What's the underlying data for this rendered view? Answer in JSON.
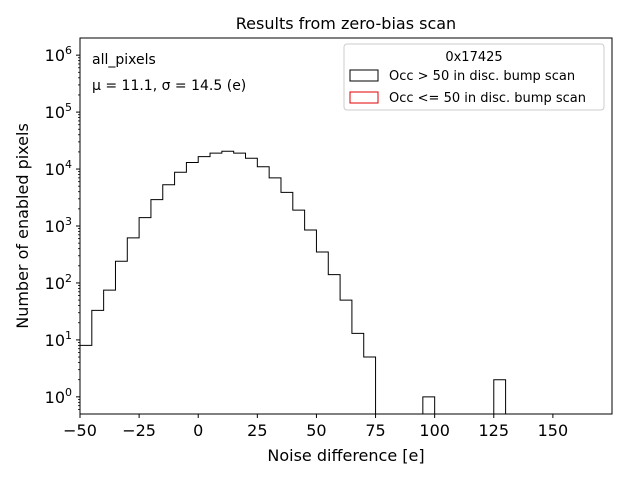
{
  "chart_data": {
    "type": "histogram",
    "title": "Results from zero-bias scan",
    "xlabel": "Noise difference [e]",
    "ylabel": "Number of enabled pixels",
    "y_scale": "log",
    "xlim": [
      -50,
      175
    ],
    "ylim": [
      0.5,
      2000000
    ],
    "x_ticks": [
      -50,
      -25,
      0,
      25,
      50,
      75,
      100,
      125,
      150
    ],
    "x_tick_labels": [
      "−50",
      "−25",
      "0",
      "25",
      "50",
      "75",
      "100",
      "125",
      "150"
    ],
    "y_ticks": [
      1,
      10,
      100,
      1000,
      10000,
      100000,
      1000000
    ],
    "bin_width": 5,
    "annotation_group": "all_pixels",
    "annotation_stats": "μ = 11.1, σ = 14.5 (e)",
    "legend": {
      "title": "0x17425",
      "placement": "top-right",
      "entries": [
        {
          "label": "Occ > 50 in disc. bump scan",
          "color": "#000000"
        },
        {
          "label": "Occ <= 50 in disc. bump scan",
          "color": "#e00000"
        }
      ]
    },
    "series": [
      {
        "bins": [
          {
            "x": -50,
            "value": 8
          },
          {
            "x": -45,
            "value": 33
          },
          {
            "x": -40,
            "value": 75
          },
          {
            "x": -35,
            "value": 240
          },
          {
            "x": -30,
            "value": 620
          },
          {
            "x": -25,
            "value": 1400
          },
          {
            "x": -20,
            "value": 2900
          },
          {
            "x": -15,
            "value": 5300
          },
          {
            "x": -10,
            "value": 8800
          },
          {
            "x": -5,
            "value": 13000
          },
          {
            "x": 0,
            "value": 16500
          },
          {
            "x": 5,
            "value": 19000
          },
          {
            "x": 10,
            "value": 20500
          },
          {
            "x": 15,
            "value": 19000
          },
          {
            "x": 20,
            "value": 15500
          },
          {
            "x": 25,
            "value": 11000
          },
          {
            "x": 30,
            "value": 7000
          },
          {
            "x": 35,
            "value": 3900
          },
          {
            "x": 40,
            "value": 1900
          },
          {
            "x": 45,
            "value": 850
          },
          {
            "x": 50,
            "value": 350
          },
          {
            "x": 55,
            "value": 140
          },
          {
            "x": 60,
            "value": 50
          },
          {
            "x": 65,
            "value": 13
          },
          {
            "x": 70,
            "value": 5
          },
          {
            "x": 95,
            "value": 1
          },
          {
            "x": 125,
            "value": 2
          }
        ]
      },
      {
        "bins": []
      }
    ]
  }
}
